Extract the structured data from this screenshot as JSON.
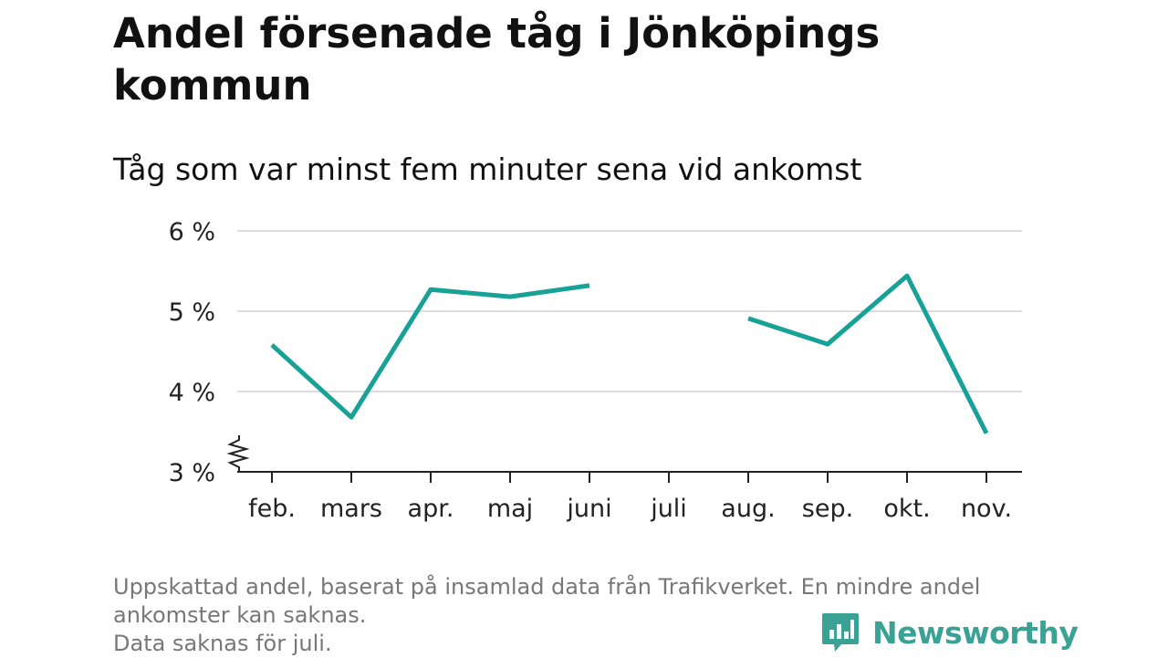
{
  "title": "Andel försenade tåg i Jönköpings kommun",
  "subtitle": "Tåg som var minst fem minuter sena vid ankomst",
  "footer": {
    "note_line1": "Uppskattad andel, baserat på insamlad data från Trafikverket. En mindre andel",
    "note_line2": "ankomster kan saknas.",
    "note_line3": "Data saknas för juli."
  },
  "brand": {
    "name": "Newsworthy",
    "icon": "newsworthy-logo-icon",
    "color": "#3aa294"
  },
  "colors": {
    "line": "#18a197",
    "grid": "#dddddd",
    "axis": "#222222"
  },
  "chart_data": {
    "type": "line",
    "categories": [
      "feb.",
      "mars",
      "apr.",
      "maj",
      "juni",
      "juli",
      "aug.",
      "sep.",
      "okt.",
      "nov."
    ],
    "series": [
      {
        "values": [
          4.58,
          3.68,
          5.27,
          5.18,
          5.32,
          null,
          4.91,
          4.59,
          5.44,
          3.48
        ]
      }
    ],
    "y_ticks": [
      {
        "value": 3,
        "label": "3 %"
      },
      {
        "value": 4,
        "label": "4 %"
      },
      {
        "value": 5,
        "label": "5 %"
      },
      {
        "value": 6,
        "label": "6 %"
      }
    ],
    "ylim": [
      3,
      6
    ],
    "axis_break": true,
    "grid": true,
    "legend": "none"
  }
}
